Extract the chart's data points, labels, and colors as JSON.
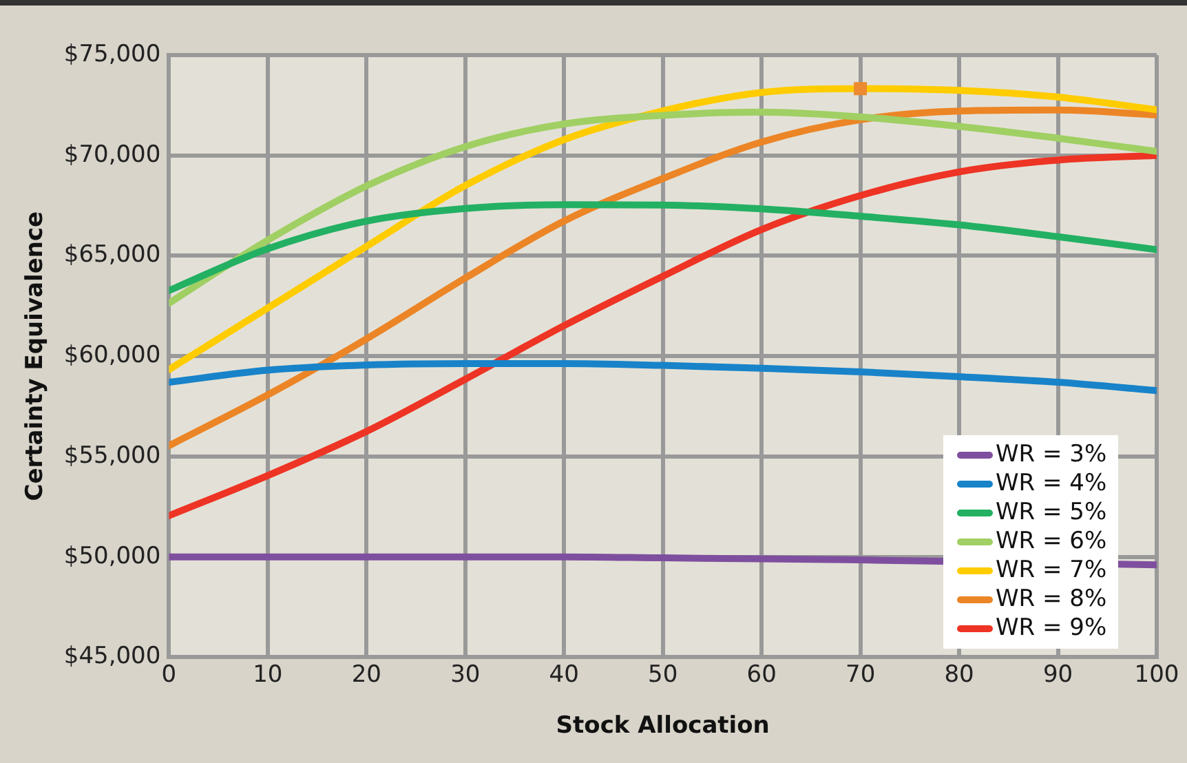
{
  "chart_data": {
    "type": "line",
    "xlabel": "Stock Allocation",
    "ylabel": "Certainty Equivalence",
    "x": [
      0,
      10,
      20,
      30,
      40,
      50,
      60,
      70,
      80,
      90,
      100
    ],
    "xlim": [
      0,
      100
    ],
    "xticks": [
      0,
      10,
      20,
      30,
      40,
      50,
      60,
      70,
      80,
      90,
      100
    ],
    "ylim": [
      45000,
      75000
    ],
    "yticks": [
      {
        "value": 45000,
        "label": "$45,000"
      },
      {
        "value": 50000,
        "label": "$50,000"
      },
      {
        "value": 55000,
        "label": "$55,000"
      },
      {
        "value": 60000,
        "label": "$60,000"
      },
      {
        "value": 65000,
        "label": "$65,000"
      },
      {
        "value": 70000,
        "label": "$70,000"
      },
      {
        "value": 75000,
        "label": "$75,000"
      }
    ],
    "grid": true,
    "legend": "bottom right",
    "line_style": "solid",
    "series": [
      {
        "name": "WR = 3%",
        "color": "#7f4f9f",
        "values": [
          50000,
          50000,
          50000,
          50000,
          50000,
          49950,
          49900,
          49850,
          null,
          null,
          49600
        ]
      },
      {
        "name": "WR = 4%",
        "color": "#1883c9",
        "values": [
          58700,
          59300,
          59560,
          59630,
          59630,
          59540,
          59400,
          59220,
          58980,
          58700,
          58280
        ]
      },
      {
        "name": "WR = 5%",
        "color": "#23b063",
        "values": [
          63270,
          65350,
          66730,
          67360,
          67550,
          67530,
          67340,
          66970,
          66540,
          65950,
          65310
        ]
      },
      {
        "name": "WR = 6%",
        "color": "#a0cf63",
        "values": [
          62640,
          65780,
          68480,
          70440,
          71570,
          72000,
          72160,
          71920,
          71450,
          70860,
          70200
        ]
      },
      {
        "name": "WR = 7%",
        "color": "#ffcc00",
        "values": [
          59330,
          62400,
          65470,
          68500,
          70790,
          72220,
          73140,
          73330,
          73240,
          72910,
          72280
        ]
      },
      {
        "name": "WR = 8%",
        "color": "#ec8526",
        "values": [
          55540,
          58070,
          60860,
          63890,
          66730,
          68850,
          70670,
          71780,
          72210,
          72260,
          72020
        ]
      },
      {
        "name": "WR = 9%",
        "color": "#ee3424",
        "values": [
          52050,
          54050,
          56250,
          58850,
          61520,
          63980,
          66310,
          68000,
          69180,
          69770,
          70000
        ]
      },
      {
        "type": "scatter",
        "color": "#ec8a32",
        "marker": "square",
        "x": [
          70
        ],
        "values": [
          73330
        ]
      }
    ]
  }
}
